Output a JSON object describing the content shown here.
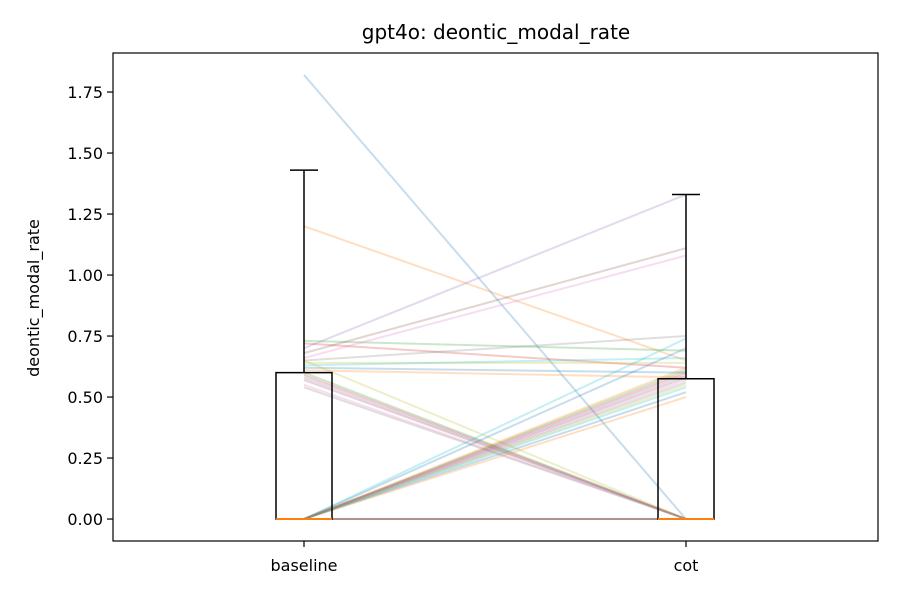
{
  "chart_data": {
    "type": "box",
    "title": "gpt4o: deontic_modal_rate",
    "xlabel": "",
    "ylabel": "deontic_modal_rate",
    "categories": [
      "baseline",
      "cot"
    ],
    "ylim": [
      -0.09,
      1.91
    ],
    "yticks": [
      "0.00",
      "0.25",
      "0.50",
      "0.75",
      "1.00",
      "1.25",
      "1.50",
      "1.75"
    ],
    "grid": false,
    "legend": "none",
    "box_color": "#000000",
    "median_color": "#ff7f0e",
    "boxes": [
      {
        "name": "baseline",
        "whisker_low": 0.0,
        "q1": 0.0,
        "median": 0.0,
        "q3": 0.6,
        "whisker_high": 1.43
      },
      {
        "name": "cot",
        "whisker_low": 0.0,
        "q1": 0.0,
        "median": 0.0,
        "q3": 0.575,
        "whisker_high": 1.33
      }
    ],
    "pairs": [
      [
        1.82,
        0.0
      ],
      [
        1.2,
        0.65
      ],
      [
        0.73,
        0.69
      ],
      [
        0.72,
        0.62
      ],
      [
        0.7,
        1.33
      ],
      [
        0.68,
        1.11
      ],
      [
        0.66,
        1.08
      ],
      [
        0.65,
        0.75
      ],
      [
        0.64,
        0.64
      ],
      [
        0.63,
        0.66
      ],
      [
        0.62,
        0.6
      ],
      [
        0.61,
        0.58
      ],
      [
        0.6,
        0.0
      ],
      [
        0.59,
        0.0
      ],
      [
        0.58,
        0.0
      ],
      [
        0.57,
        0.0
      ],
      [
        0.55,
        0.0
      ],
      [
        0.54,
        0.0
      ],
      [
        0.65,
        0.0
      ],
      [
        0.0,
        0.74
      ],
      [
        0.0,
        0.7
      ],
      [
        0.0,
        0.62
      ],
      [
        0.0,
        0.61
      ],
      [
        0.0,
        0.6
      ],
      [
        0.0,
        0.59
      ],
      [
        0.0,
        0.58
      ],
      [
        0.0,
        0.57
      ],
      [
        0.0,
        0.56
      ],
      [
        0.0,
        0.55
      ],
      [
        0.0,
        0.54
      ],
      [
        0.0,
        0.52
      ],
      [
        0.0,
        0.5
      ],
      [
        0.0,
        0.0
      ],
      [
        0.0,
        0.0
      ],
      [
        0.0,
        0.0
      ],
      [
        0.0,
        0.0
      ]
    ],
    "pair_colors": [
      "#1f77b4",
      "#ff7f0e",
      "#2ca02c",
      "#d62728",
      "#9467bd",
      "#8c564b",
      "#e377c2",
      "#7f7f7f",
      "#bcbd22",
      "#17becf"
    ]
  }
}
